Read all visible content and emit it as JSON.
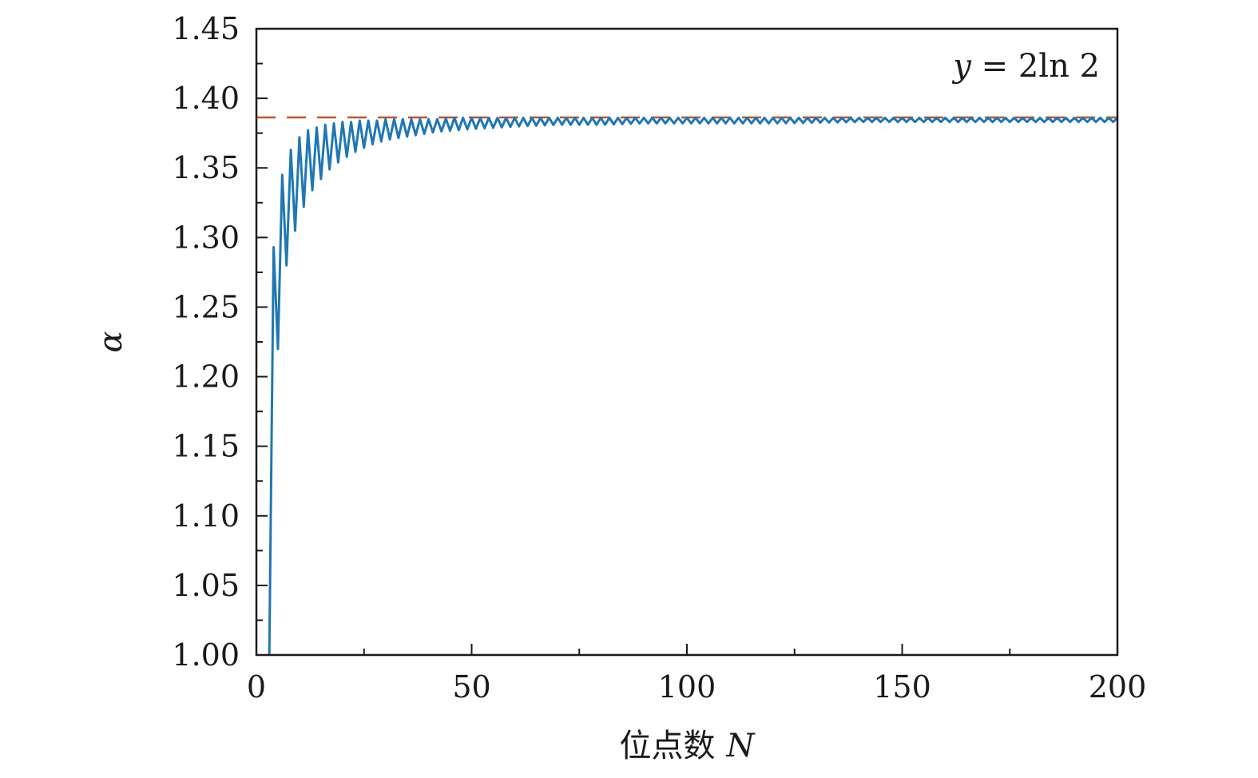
{
  "chart_data": {
    "type": "line",
    "title": "",
    "xlabel_text": "位点数",
    "xlabel_var": "N",
    "ylabel": "α",
    "annotation": {
      "var": "y",
      "rest": " = 2ln 2",
      "position": "top-right"
    },
    "xlim": [
      0,
      200
    ],
    "ylim": [
      1.0,
      1.45
    ],
    "xticks": [
      0,
      50,
      100,
      150,
      200
    ],
    "xticks_minor": [
      25,
      75,
      125,
      175
    ],
    "yticks": [
      1.0,
      1.05,
      1.1,
      1.15,
      1.2,
      1.25,
      1.3,
      1.35,
      1.4,
      1.45
    ],
    "ytick_labels": [
      "1.00",
      "1.05",
      "1.10",
      "1.15",
      "1.20",
      "1.25",
      "1.30",
      "1.35",
      "1.40",
      "1.45"
    ],
    "grid": false,
    "legend": "none",
    "reference_line": {
      "y": 1.3863,
      "style": "dashed",
      "color": "#c0562a"
    },
    "series": [
      {
        "color": "#1f77b4",
        "points_x": [
          3,
          4,
          5,
          6,
          7,
          8,
          9,
          10,
          11,
          12,
          13,
          14,
          15,
          16,
          17,
          18,
          19,
          20,
          22,
          24,
          26,
          28,
          30,
          34,
          38,
          42,
          46,
          50,
          56,
          62,
          70,
          80,
          90,
          100,
          120,
          140,
          160,
          180,
          200
        ],
        "upper_envelope": [
          1.0,
          1.293,
          1.31,
          1.345,
          1.352,
          1.363,
          1.368,
          1.372,
          1.375,
          1.377,
          1.378,
          1.379,
          1.38,
          1.381,
          1.381,
          1.382,
          1.382,
          1.383,
          1.383,
          1.384,
          1.384,
          1.384,
          1.385,
          1.385,
          1.385,
          1.385,
          1.386,
          1.386,
          1.386,
          1.386,
          1.386,
          1.386,
          1.386,
          1.386,
          1.386,
          1.386,
          1.386,
          1.386,
          1.386
        ],
        "lower_envelope": [
          1.0,
          1.19,
          1.22,
          1.26,
          1.28,
          1.295,
          1.305,
          1.315,
          1.322,
          1.328,
          1.334,
          1.338,
          1.342,
          1.346,
          1.349,
          1.352,
          1.354,
          1.356,
          1.36,
          1.363,
          1.366,
          1.368,
          1.37,
          1.372,
          1.374,
          1.376,
          1.377,
          1.378,
          1.379,
          1.38,
          1.381,
          1.381,
          1.382,
          1.382,
          1.382,
          1.383,
          1.383,
          1.383,
          1.383
        ],
        "oscillation_period": 2
      }
    ]
  }
}
